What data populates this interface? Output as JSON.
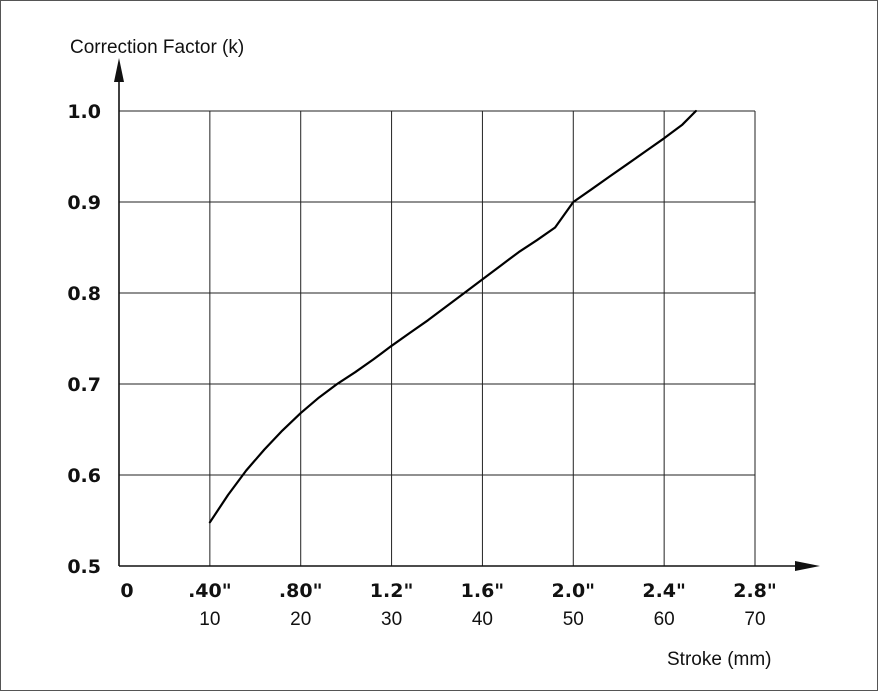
{
  "chart_data": {
    "type": "line",
    "y_title": "Correction Factor (k)",
    "x_title": "Stroke (mm)",
    "x_unit": "mm",
    "x_range": [
      0,
      70
    ],
    "y_range": [
      0.5,
      1.0
    ],
    "grid": true,
    "y_ticks": [
      {
        "value": 0.5,
        "label": "0.5"
      },
      {
        "value": 0.6,
        "label": "0.6"
      },
      {
        "value": 0.7,
        "label": "0.7"
      },
      {
        "value": 0.8,
        "label": "0.8"
      },
      {
        "value": 0.9,
        "label": "0.9"
      },
      {
        "value": 1.0,
        "label": "1.0"
      }
    ],
    "x_ticks": [
      {
        "value": 0,
        "inch_label": "0",
        "mm_label": ""
      },
      {
        "value": 10,
        "inch_label": ".40\"",
        "mm_label": "10"
      },
      {
        "value": 20,
        "inch_label": ".80\"",
        "mm_label": "20"
      },
      {
        "value": 30,
        "inch_label": "1.2\"",
        "mm_label": "30"
      },
      {
        "value": 40,
        "inch_label": "1.6\"",
        "mm_label": "40"
      },
      {
        "value": 50,
        "inch_label": "2.0\"",
        "mm_label": "50"
      },
      {
        "value": 60,
        "inch_label": "2.4\"",
        "mm_label": "60"
      },
      {
        "value": 70,
        "inch_label": "2.8\"",
        "mm_label": "70"
      }
    ],
    "series": [
      {
        "color": "#000000",
        "x": [
          10,
          12,
          14,
          16,
          18,
          20,
          22,
          24,
          26,
          28,
          30,
          32,
          34,
          36,
          38,
          40,
          42,
          44,
          46,
          48,
          50,
          52,
          54,
          56,
          58,
          60,
          62,
          63.5
        ],
        "y": [
          0.548,
          0.578,
          0.605,
          0.628,
          0.649,
          0.668,
          0.685,
          0.7,
          0.713,
          0.727,
          0.742,
          0.756,
          0.77,
          0.785,
          0.8,
          0.815,
          0.83,
          0.845,
          0.858,
          0.872,
          0.9,
          0.914,
          0.928,
          0.942,
          0.956,
          0.97,
          0.985,
          1.0
        ]
      }
    ]
  }
}
